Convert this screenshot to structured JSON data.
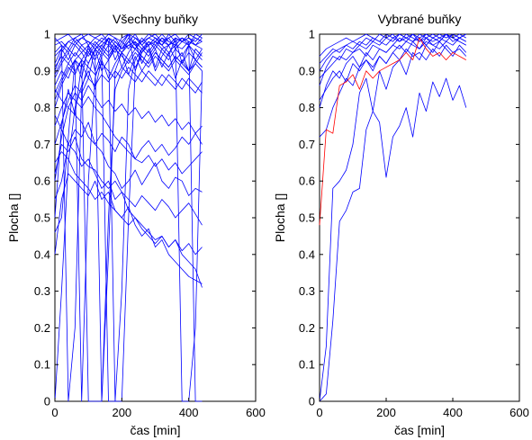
{
  "chart_data": [
    {
      "type": "line",
      "title": "Všechny buňky",
      "xlabel": "čas [min]",
      "ylabel": "Plocha []",
      "xlim": [
        0,
        600
      ],
      "ylim": [
        0,
        1
      ],
      "xticks": [
        0,
        200,
        400,
        600
      ],
      "yticks": [
        0,
        0.1,
        0.2,
        0.3,
        0.4,
        0.5,
        0.6,
        0.7,
        0.8,
        0.9,
        1
      ],
      "x": [
        0,
        20,
        40,
        60,
        80,
        100,
        120,
        140,
        160,
        180,
        200,
        220,
        240,
        260,
        280,
        300,
        320,
        340,
        360,
        380,
        400,
        420,
        440
      ],
      "colors": [
        "#0000ff"
      ],
      "grid": false,
      "series": [
        {
          "values": [
            0.46,
            0.5,
            0.72,
            0.93,
            0.88,
            0.97,
            0.9,
            0.95,
            0.99,
            0.93,
            0.97,
            1.0,
            0.9,
            0.95,
            0.97,
            0.91,
            0.96,
            0.94,
            0.99,
            0.92,
            0.97,
            0.93,
            0.96
          ]
        },
        {
          "values": [
            0.5,
            0.75,
            0.85,
            0.78,
            0.92,
            0.88,
            0.96,
            0.9,
            0.93,
            0.97,
            0.91,
            0.95,
            0.98,
            0.92,
            0.96,
            0.9,
            0.94,
            0.97,
            0.93,
            0.95,
            0.9,
            0.96,
            0.94
          ]
        },
        {
          "values": [
            0.0,
            0.3,
            0.65,
            0.8,
            0.86,
            0.9,
            0.85,
            0.93,
            0.88,
            0.92,
            0.95,
            0.89,
            0.94,
            0.9,
            0.93,
            0.96,
            0.91,
            0.95,
            0.88,
            0.93,
            0.9,
            0.92,
            0.95
          ]
        },
        {
          "values": [
            0.55,
            0.6,
            0.7,
            0.74,
            0.72,
            0.76,
            0.7,
            0.73,
            0.71,
            0.68,
            0.72,
            0.7,
            0.66,
            0.69,
            0.71,
            0.68,
            0.7,
            0.67,
            0.69,
            0.72,
            0.7,
            0.73,
            0.75
          ]
        },
        {
          "values": [
            0.62,
            0.7,
            0.68,
            0.72,
            0.66,
            0.64,
            0.63,
            0.6,
            0.58,
            0.6,
            0.57,
            0.55,
            0.53,
            0.56,
            0.54,
            0.52,
            0.55,
            0.53,
            0.5,
            0.52,
            0.54,
            0.51,
            0.48
          ]
        },
        {
          "values": [
            0.78,
            0.74,
            0.7,
            0.68,
            0.64,
            0.66,
            0.62,
            0.58,
            0.6,
            0.55,
            0.57,
            0.52,
            0.5,
            0.48,
            0.46,
            0.44,
            0.45,
            0.42,
            0.44,
            0.4,
            0.38,
            0.36,
            0.31
          ]
        },
        {
          "values": [
            0.85,
            0.82,
            0.8,
            0.78,
            0.76,
            0.72,
            0.7,
            0.68,
            0.64,
            0.62,
            0.58,
            0.6,
            0.63,
            0.59,
            0.62,
            0.65,
            0.6,
            0.58,
            0.61,
            0.6,
            0.56,
            0.58,
            0.57
          ]
        },
        {
          "values": [
            0.9,
            0.95,
            0.98,
            0.99,
            1.0,
            0.97,
            0.99,
            1.0,
            0.98,
            0.96,
            0.99,
            1.0,
            0.97,
            0.98,
            1.0,
            0.99,
            0.97,
            1.0,
            0.98,
            0.99,
            0.97,
            1.0,
            0.99
          ]
        },
        {
          "values": [
            0.95,
            0.97,
            0.0,
            0.2,
            0.85,
            0.92,
            0.96,
            0.98,
            0.97,
            0.99,
            0.96,
            0.98,
            1.0,
            0.97,
            0.99,
            0.98,
            0.96,
            0.97,
            0.99,
            0.98,
            0.97,
            0.99,
            0.98
          ]
        },
        {
          "values": [
            0.88,
            0.92,
            0.95,
            0.9,
            0.0,
            0.6,
            0.88,
            0.94,
            0.97,
            0.95,
            0.98,
            0.96,
            0.99,
            0.97,
            0.95,
            0.98,
            0.97,
            0.99,
            0.96,
            0.98,
            0.99,
            0.97,
            0.98
          ]
        },
        {
          "values": [
            0.8,
            0.86,
            0.9,
            0.93,
            0.95,
            0.97,
            0.94,
            0.0,
            0.4,
            0.9,
            0.95,
            0.97,
            0.96,
            0.98,
            0.97,
            0.99,
            0.98,
            0.97,
            0.99,
            0.98,
            1.0,
            0.99,
            0.98
          ]
        },
        {
          "values": [
            0.92,
            0.96,
            0.98,
            0.97,
            0.99,
            0.98,
            0.97,
            0.99,
            0.98,
            0.0,
            0.0,
            0.5,
            0.9,
            0.96,
            0.98,
            0.97,
            0.99,
            0.98,
            0.97,
            0.99,
            0.98,
            0.97,
            0.96
          ]
        },
        {
          "values": [
            0.7,
            0.76,
            0.82,
            0.86,
            0.84,
            0.88,
            0.86,
            0.89,
            0.87,
            0.9,
            0.88,
            0.91,
            0.89,
            0.87,
            0.9,
            0.88,
            0.86,
            0.89,
            0.87,
            0.85,
            0.88,
            0.86,
            0.84
          ]
        },
        {
          "values": [
            0.98,
            0.99,
            1.0,
            0.98,
            0.99,
            1.0,
            0.99,
            0.98,
            1.0,
            0.99,
            0.98,
            1.0,
            0.99,
            0.98,
            0.99,
            1.0,
            0.98,
            0.99,
            1.0,
            0.98,
            0.99,
            0.98,
            1.0
          ]
        },
        {
          "values": [
            0.86,
            0.9,
            0.88,
            0.93,
            0.91,
            0.95,
            0.93,
            0.96,
            0.94,
            0.97,
            0.95,
            0.93,
            0.96,
            0.94,
            0.92,
            0.95,
            0.93,
            0.91,
            0.94,
            0.92,
            0.9,
            0.93,
            0.91
          ]
        },
        {
          "values": [
            0.6,
            0.72,
            0.8,
            0.84,
            0.82,
            0.86,
            0.83,
            0.8,
            0.82,
            0.79,
            0.81,
            0.78,
            0.8,
            0.77,
            0.79,
            0.76,
            0.78,
            0.75,
            0.77,
            0.74,
            0.76,
            0.73,
            0.7
          ]
        },
        {
          "values": [
            0.4,
            0.55,
            0.62,
            0.6,
            0.58,
            0.56,
            0.6,
            0.55,
            0.57,
            0.52,
            0.5,
            0.53,
            0.48,
            0.45,
            0.47,
            0.42,
            0.44,
            0.4,
            0.38,
            0.36,
            0.34,
            0.33,
            0.32
          ]
        },
        {
          "values": [
            0.94,
            0.96,
            0.93,
            0.97,
            0.95,
            0.92,
            0.96,
            0.94,
            0.0,
            0.0,
            0.3,
            0.85,
            0.93,
            0.96,
            0.94,
            0.97,
            0.95,
            0.93,
            0.96,
            0.94,
            0.97,
            0.95,
            0.93
          ]
        },
        {
          "values": [
            0.82,
            0.87,
            0.91,
            0.89,
            0.93,
            0.0,
            0.0,
            0.0,
            0.5,
            0.85,
            0.9,
            0.93,
            0.91,
            0.94,
            0.92,
            0.95,
            0.93,
            0.91,
            0.94,
            0.92,
            0.95,
            0.93,
            0.91
          ]
        },
        {
          "values": [
            0.99,
            0.97,
            0.95,
            0.98,
            0.96,
            0.94,
            0.97,
            0.95,
            0.93,
            0.96,
            0.94,
            0.92,
            0.95,
            0.93,
            0.91,
            0.94,
            0.92,
            0.9,
            0.93,
            0.91,
            0.89,
            0.92,
            0.9
          ]
        },
        {
          "values": [
            0.75,
            0.8,
            0.84,
            0.82,
            0.8,
            0.83,
            0.8,
            0.78,
            0.75,
            0.72,
            0.7,
            0.68,
            0.66,
            0.65,
            0.67,
            0.64,
            0.66,
            0.63,
            0.65,
            0.62,
            0.64,
            0.66,
            0.68
          ]
        },
        {
          "values": [
            0.89,
            0.93,
            0.96,
            0.94,
            0.97,
            0.95,
            0.98,
            0.96,
            0.99,
            0.97,
            0.95,
            0.98,
            0.96,
            0.99,
            0.97,
            0.98,
            1.0,
            0.98,
            0.97,
            0.99,
            0.98,
            0.0,
            0.0
          ]
        },
        {
          "values": [
            0.65,
            0.68,
            0.66,
            0.62,
            0.6,
            0.58,
            0.55,
            0.57,
            0.54,
            0.52,
            0.5,
            0.48,
            0.5,
            0.47,
            0.45,
            0.43,
            0.45,
            0.42,
            0.44,
            0.41,
            0.43,
            0.4,
            0.42
          ]
        },
        {
          "values": [
            0.97,
            0.98,
            0.96,
            0.99,
            0.97,
            0.98,
            0.96,
            0.97,
            0.99,
            0.98,
            0.96,
            0.97,
            0.98,
            0.96,
            0.97,
            0.99,
            0.97,
            0.95,
            0.97,
            0.96,
            0.98,
            0.97,
            0.99
          ]
        },
        {
          "values": [
            0.91,
            0.94,
            0.92,
            0.9,
            0.93,
            0.91,
            0.89,
            0.92,
            0.9,
            0.88,
            0.91,
            0.89,
            0.87,
            0.9,
            0.88,
            0.86,
            0.89,
            0.87,
            0.85,
            0.88,
            0.86,
            0.84,
            0.87
          ]
        },
        {
          "values": [
            0.84,
            0.88,
            0.92,
            0.95,
            0.93,
            0.96,
            0.94,
            0.97,
            0.95,
            0.98,
            0.96,
            0.99,
            0.97,
            0.95,
            0.98,
            0.96,
            0.99,
            0.97,
            0.98,
            0.0,
            0.0,
            0.2,
            0.9
          ]
        }
      ]
    },
    {
      "type": "line",
      "title": "Vybrané buňky",
      "xlabel": "čas [min]",
      "ylabel": "Plocha []",
      "xlim": [
        0,
        600
      ],
      "ylim": [
        0,
        1
      ],
      "xticks": [
        0,
        200,
        400,
        600
      ],
      "yticks": [
        0,
        0.1,
        0.2,
        0.3,
        0.4,
        0.5,
        0.6,
        0.7,
        0.8,
        0.9,
        1
      ],
      "x": [
        0,
        20,
        40,
        60,
        80,
        100,
        120,
        140,
        160,
        180,
        200,
        220,
        240,
        260,
        280,
        300,
        320,
        340,
        360,
        380,
        400,
        420,
        440
      ],
      "colors": [
        "#0000ff",
        "#ff0000"
      ],
      "grid": false,
      "series": [
        {
          "color": "#0000ff",
          "values": [
            0.0,
            0.02,
            0.22,
            0.49,
            0.52,
            0.57,
            0.58,
            0.74,
            0.79,
            0.76,
            0.61,
            0.72,
            0.75,
            0.8,
            0.72,
            0.84,
            0.79,
            0.87,
            0.83,
            0.88,
            0.82,
            0.86,
            0.8
          ]
        },
        {
          "color": "#0000ff",
          "values": [
            0.0,
            0.15,
            0.58,
            0.6,
            0.63,
            0.7,
            0.84,
            0.88,
            0.79,
            0.9,
            0.85,
            0.91,
            0.93,
            0.89,
            0.95,
            0.93,
            0.97,
            0.95,
            0.98,
            0.96,
            0.94,
            0.97,
            0.95
          ]
        },
        {
          "color": "#0000ff",
          "values": [
            0.72,
            0.74,
            0.8,
            0.84,
            0.88,
            0.86,
            0.91,
            0.93,
            0.9,
            0.94,
            0.92,
            0.95,
            0.97,
            0.95,
            0.98,
            0.96,
            0.99,
            0.97,
            0.98,
            1.0,
            0.98,
            0.99,
            1.0
          ]
        },
        {
          "color": "#0000ff",
          "values": [
            0.8,
            0.86,
            0.9,
            0.88,
            0.92,
            0.94,
            0.91,
            0.95,
            0.93,
            0.96,
            0.95,
            0.97,
            0.99,
            0.98,
            1.0,
            0.99,
            0.97,
            0.99,
            0.98,
            1.0,
            0.99,
            0.98,
            0.97
          ]
        },
        {
          "color": "#0000ff",
          "values": [
            0.86,
            0.91,
            0.94,
            0.93,
            0.96,
            0.95,
            0.97,
            0.96,
            0.98,
            0.97,
            0.99,
            1.0,
            0.98,
            0.99,
            1.0,
            0.98,
            0.99,
            1.0,
            0.99,
            0.98,
            1.0,
            0.99,
            0.98
          ]
        },
        {
          "color": "#0000ff",
          "values": [
            0.9,
            0.93,
            0.95,
            0.96,
            0.97,
            0.98,
            0.97,
            0.99,
            0.98,
            1.0,
            0.99,
            0.98,
            1.0,
            0.99,
            0.98,
            1.0,
            0.99,
            0.98,
            0.99,
            1.0,
            0.99,
            1.0,
            0.99
          ]
        },
        {
          "color": "#0000ff",
          "values": [
            0.88,
            0.9,
            0.92,
            0.94,
            0.93,
            0.95,
            0.96,
            0.94,
            0.97,
            0.96,
            0.95,
            0.97,
            0.96,
            0.98,
            0.97,
            0.96,
            0.98,
            0.97,
            0.96,
            0.98,
            0.97,
            0.99,
            0.98
          ]
        },
        {
          "color": "#0000ff",
          "values": [
            0.94,
            0.96,
            0.97,
            0.98,
            0.99,
            0.98,
            0.99,
            1.0,
            0.99,
            0.98,
            1.0,
            0.99,
            1.0,
            0.99,
            0.98,
            0.99,
            1.0,
            0.99,
            1.0,
            0.99,
            1.0,
            0.99,
            1.0
          ]
        },
        {
          "color": "#0000ff",
          "values": [
            0.82,
            0.85,
            0.88,
            0.9,
            0.87,
            0.92,
            0.9,
            0.93,
            0.91,
            0.94,
            0.92,
            0.95,
            0.93,
            0.96,
            0.94,
            0.95,
            0.93,
            0.96,
            0.94,
            0.97,
            0.95,
            0.96,
            0.94
          ]
        },
        {
          "color": "#0000ff",
          "values": [
            0.92,
            0.94,
            0.96,
            0.95,
            0.97,
            0.96,
            0.98,
            0.97,
            0.99,
            0.98,
            0.97,
            0.99,
            0.98,
            1.0,
            0.99,
            0.98,
            1.0,
            0.99,
            0.98,
            1.0,
            0.99,
            0.98,
            0.97
          ]
        },
        {
          "color": "#ff0000",
          "values": [
            0.48,
            0.74,
            0.73,
            0.86,
            0.87,
            0.89,
            0.85,
            0.9,
            0.88,
            0.9,
            0.91,
            0.92,
            0.93,
            0.95,
            0.93,
            0.99,
            0.96,
            0.94,
            0.95,
            0.93,
            0.95,
            0.94,
            0.93
          ]
        }
      ]
    }
  ]
}
